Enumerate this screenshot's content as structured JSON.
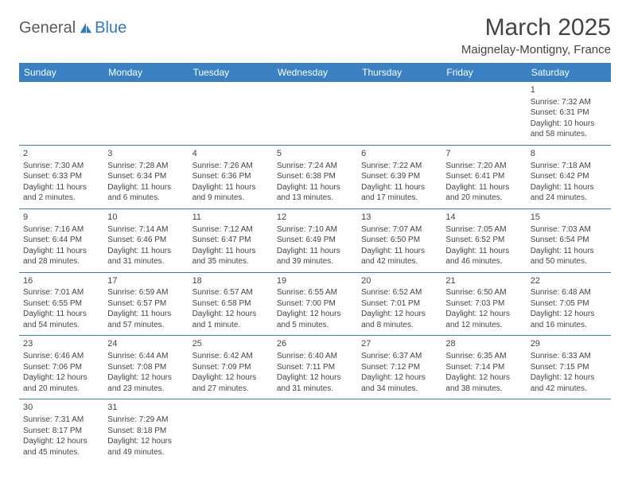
{
  "logo": {
    "text1": "General",
    "text2": "Blue"
  },
  "title": "March 2025",
  "subtitle": "Maignelay-Montigny, France",
  "weekdays": [
    "Sunday",
    "Monday",
    "Tuesday",
    "Wednesday",
    "Thursday",
    "Friday",
    "Saturday"
  ],
  "colors": {
    "header_bg": "#3a81c4",
    "header_fg": "#ffffff",
    "text": "#444444",
    "accent": "#2f7ac0"
  },
  "weeks": [
    [
      null,
      null,
      null,
      null,
      null,
      null,
      {
        "n": "1",
        "sr": "Sunrise: 7:32 AM",
        "ss": "Sunset: 6:31 PM",
        "dl": "Daylight: 10 hours and 58 minutes."
      }
    ],
    [
      {
        "n": "2",
        "sr": "Sunrise: 7:30 AM",
        "ss": "Sunset: 6:33 PM",
        "dl": "Daylight: 11 hours and 2 minutes."
      },
      {
        "n": "3",
        "sr": "Sunrise: 7:28 AM",
        "ss": "Sunset: 6:34 PM",
        "dl": "Daylight: 11 hours and 6 minutes."
      },
      {
        "n": "4",
        "sr": "Sunrise: 7:26 AM",
        "ss": "Sunset: 6:36 PM",
        "dl": "Daylight: 11 hours and 9 minutes."
      },
      {
        "n": "5",
        "sr": "Sunrise: 7:24 AM",
        "ss": "Sunset: 6:38 PM",
        "dl": "Daylight: 11 hours and 13 minutes."
      },
      {
        "n": "6",
        "sr": "Sunrise: 7:22 AM",
        "ss": "Sunset: 6:39 PM",
        "dl": "Daylight: 11 hours and 17 minutes."
      },
      {
        "n": "7",
        "sr": "Sunrise: 7:20 AM",
        "ss": "Sunset: 6:41 PM",
        "dl": "Daylight: 11 hours and 20 minutes."
      },
      {
        "n": "8",
        "sr": "Sunrise: 7:18 AM",
        "ss": "Sunset: 6:42 PM",
        "dl": "Daylight: 11 hours and 24 minutes."
      }
    ],
    [
      {
        "n": "9",
        "sr": "Sunrise: 7:16 AM",
        "ss": "Sunset: 6:44 PM",
        "dl": "Daylight: 11 hours and 28 minutes."
      },
      {
        "n": "10",
        "sr": "Sunrise: 7:14 AM",
        "ss": "Sunset: 6:46 PM",
        "dl": "Daylight: 11 hours and 31 minutes."
      },
      {
        "n": "11",
        "sr": "Sunrise: 7:12 AM",
        "ss": "Sunset: 6:47 PM",
        "dl": "Daylight: 11 hours and 35 minutes."
      },
      {
        "n": "12",
        "sr": "Sunrise: 7:10 AM",
        "ss": "Sunset: 6:49 PM",
        "dl": "Daylight: 11 hours and 39 minutes."
      },
      {
        "n": "13",
        "sr": "Sunrise: 7:07 AM",
        "ss": "Sunset: 6:50 PM",
        "dl": "Daylight: 11 hours and 42 minutes."
      },
      {
        "n": "14",
        "sr": "Sunrise: 7:05 AM",
        "ss": "Sunset: 6:52 PM",
        "dl": "Daylight: 11 hours and 46 minutes."
      },
      {
        "n": "15",
        "sr": "Sunrise: 7:03 AM",
        "ss": "Sunset: 6:54 PM",
        "dl": "Daylight: 11 hours and 50 minutes."
      }
    ],
    [
      {
        "n": "16",
        "sr": "Sunrise: 7:01 AM",
        "ss": "Sunset: 6:55 PM",
        "dl": "Daylight: 11 hours and 54 minutes."
      },
      {
        "n": "17",
        "sr": "Sunrise: 6:59 AM",
        "ss": "Sunset: 6:57 PM",
        "dl": "Daylight: 11 hours and 57 minutes."
      },
      {
        "n": "18",
        "sr": "Sunrise: 6:57 AM",
        "ss": "Sunset: 6:58 PM",
        "dl": "Daylight: 12 hours and 1 minute."
      },
      {
        "n": "19",
        "sr": "Sunrise: 6:55 AM",
        "ss": "Sunset: 7:00 PM",
        "dl": "Daylight: 12 hours and 5 minutes."
      },
      {
        "n": "20",
        "sr": "Sunrise: 6:52 AM",
        "ss": "Sunset: 7:01 PM",
        "dl": "Daylight: 12 hours and 8 minutes."
      },
      {
        "n": "21",
        "sr": "Sunrise: 6:50 AM",
        "ss": "Sunset: 7:03 PM",
        "dl": "Daylight: 12 hours and 12 minutes."
      },
      {
        "n": "22",
        "sr": "Sunrise: 6:48 AM",
        "ss": "Sunset: 7:05 PM",
        "dl": "Daylight: 12 hours and 16 minutes."
      }
    ],
    [
      {
        "n": "23",
        "sr": "Sunrise: 6:46 AM",
        "ss": "Sunset: 7:06 PM",
        "dl": "Daylight: 12 hours and 20 minutes."
      },
      {
        "n": "24",
        "sr": "Sunrise: 6:44 AM",
        "ss": "Sunset: 7:08 PM",
        "dl": "Daylight: 12 hours and 23 minutes."
      },
      {
        "n": "25",
        "sr": "Sunrise: 6:42 AM",
        "ss": "Sunset: 7:09 PM",
        "dl": "Daylight: 12 hours and 27 minutes."
      },
      {
        "n": "26",
        "sr": "Sunrise: 6:40 AM",
        "ss": "Sunset: 7:11 PM",
        "dl": "Daylight: 12 hours and 31 minutes."
      },
      {
        "n": "27",
        "sr": "Sunrise: 6:37 AM",
        "ss": "Sunset: 7:12 PM",
        "dl": "Daylight: 12 hours and 34 minutes."
      },
      {
        "n": "28",
        "sr": "Sunrise: 6:35 AM",
        "ss": "Sunset: 7:14 PM",
        "dl": "Daylight: 12 hours and 38 minutes."
      },
      {
        "n": "29",
        "sr": "Sunrise: 6:33 AM",
        "ss": "Sunset: 7:15 PM",
        "dl": "Daylight: 12 hours and 42 minutes."
      }
    ],
    [
      {
        "n": "30",
        "sr": "Sunrise: 7:31 AM",
        "ss": "Sunset: 8:17 PM",
        "dl": "Daylight: 12 hours and 45 minutes."
      },
      {
        "n": "31",
        "sr": "Sunrise: 7:29 AM",
        "ss": "Sunset: 8:18 PM",
        "dl": "Daylight: 12 hours and 49 minutes."
      },
      null,
      null,
      null,
      null,
      null
    ]
  ]
}
